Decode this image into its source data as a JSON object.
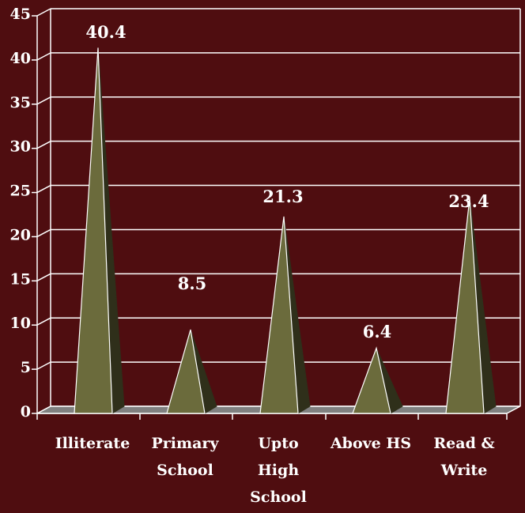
{
  "chart_data": {
    "type": "bar",
    "style": "3d-pyramid",
    "categories": [
      [
        "Illiterate"
      ],
      [
        "Primary",
        "School"
      ],
      [
        "Upto",
        "High",
        "School"
      ],
      [
        "Above HS"
      ],
      [
        "Read &",
        "Write"
      ]
    ],
    "values": [
      40.4,
      8.5,
      21.3,
      6.4,
      23.4
    ],
    "data_labels": [
      "40.4",
      "8.5",
      "21.3",
      "6.4",
      "23.4"
    ],
    "ylim": [
      0,
      45
    ],
    "yticks": [
      "0",
      "5",
      "10",
      "15",
      "20",
      "25",
      "30",
      "35",
      "40",
      "45"
    ],
    "grid": true,
    "legend": "none"
  },
  "colors": {
    "background": "#4f0d10",
    "grid": "#ffffff",
    "pyramid_front": "#6b6b3c",
    "pyramid_side": "#2f2f1a",
    "floor": "#808080"
  }
}
